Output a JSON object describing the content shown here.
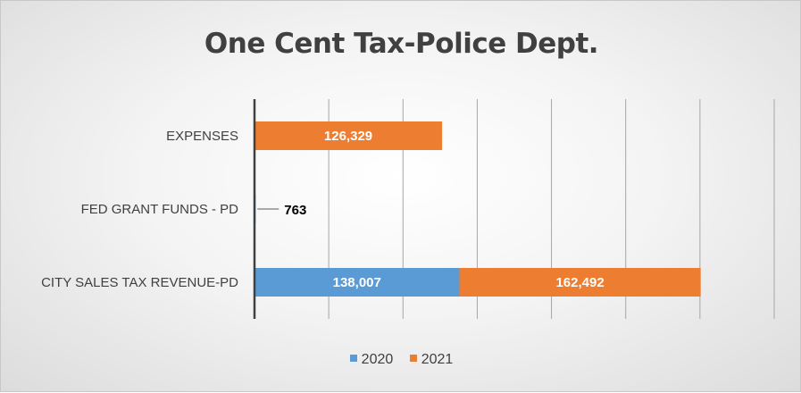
{
  "chart_data": {
    "type": "bar",
    "orientation": "horizontal",
    "stacked": true,
    "title": "One Cent Tax-Police Dept.",
    "categories": [
      "EXPENSES",
      "FED GRANT FUNDS - PD",
      "CITY SALES TAX REVENUE-PD"
    ],
    "series": [
      {
        "name": "2020",
        "color": "#5b9bd5",
        "values": [
          null,
          763,
          138007
        ],
        "labels": [
          "",
          "763",
          "138,007"
        ]
      },
      {
        "name": "2021",
        "color": "#ed7d31",
        "values": [
          126329,
          null,
          162492
        ],
        "labels": [
          "126,329",
          "",
          "162,492"
        ]
      }
    ],
    "xlim": [
      0,
      350000
    ],
    "x_gridline_step": 50000,
    "x_tick_labels_shown": false,
    "grid": true,
    "legend_position": "bottom"
  }
}
